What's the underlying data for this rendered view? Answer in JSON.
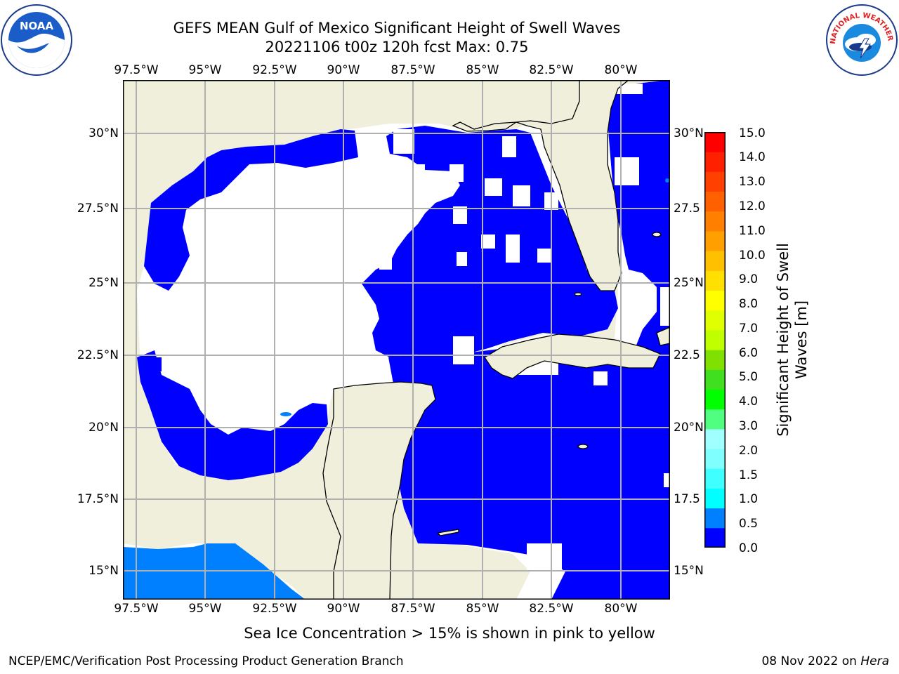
{
  "header": {
    "title_line1": "GEFS MEAN Gulf of Mexico Significant Height of Swell Waves",
    "title_line2": "20221106 t00z 120h fcst   Max: 0.75"
  },
  "logos": {
    "left": {
      "icon": "noaa-logo",
      "text": "NOAA"
    },
    "right": {
      "icon": "national-weather-service-logo",
      "text": "NATIONAL WEATHER SERVICE"
    }
  },
  "map": {
    "lon_labels": [
      "97.5°W",
      "95°W",
      "92.5°W",
      "90°W",
      "87.5°W",
      "85°W",
      "82.5°W",
      "80°W"
    ],
    "lat_labels": [
      "30°N",
      "27.5°N",
      "25°N",
      "22.5°N",
      "20°N",
      "17.5°N",
      "15°N"
    ],
    "lat_labels_right": [
      "30°N",
      "27.5",
      "25°N",
      "22.5",
      "20°N",
      "17.5",
      "15°N"
    ],
    "extent": {
      "lon_min": -98,
      "lon_max": -78.2,
      "lat_min": 14,
      "lat_max": 31.8
    },
    "colors": {
      "land": "#efefdc",
      "ocean_missing": "#ffffff",
      "coast": "#000000",
      "grid": "#b0b0b0"
    }
  },
  "colorbar": {
    "label_line1": "Significant Height of Swell",
    "label_line2": "Waves [m]",
    "ticks": [
      "15.0",
      "14.0",
      "13.0",
      "12.0",
      "11.0",
      "10.0",
      "9.0",
      "8.0",
      "7.0",
      "6.0",
      "5.0",
      "4.0",
      "3.0",
      "2.0",
      "1.5",
      "1.0",
      "0.5",
      "0.0"
    ],
    "colors": [
      "#0000ff",
      "#0080ff",
      "#00ffff",
      "#40ffff",
      "#80ffff",
      "#a0ffff",
      "#50ff80",
      "#00ff00",
      "#40e020",
      "#80e000",
      "#c0ff00",
      "#e0ff00",
      "#ffff00",
      "#ffe000",
      "#ffc000",
      "#ffa000",
      "#ff8000",
      "#ff6000",
      "#ff4000",
      "#ff2000",
      "#ff0000"
    ]
  },
  "notes": {
    "ice": "Sea Ice Concentration > 15% is shown in pink to yellow"
  },
  "footer": {
    "left": "NCEP/EMC/Verification Post Processing Product Generation Branch",
    "date": "08 Nov 2022 on ",
    "machine": "Hera"
  }
}
